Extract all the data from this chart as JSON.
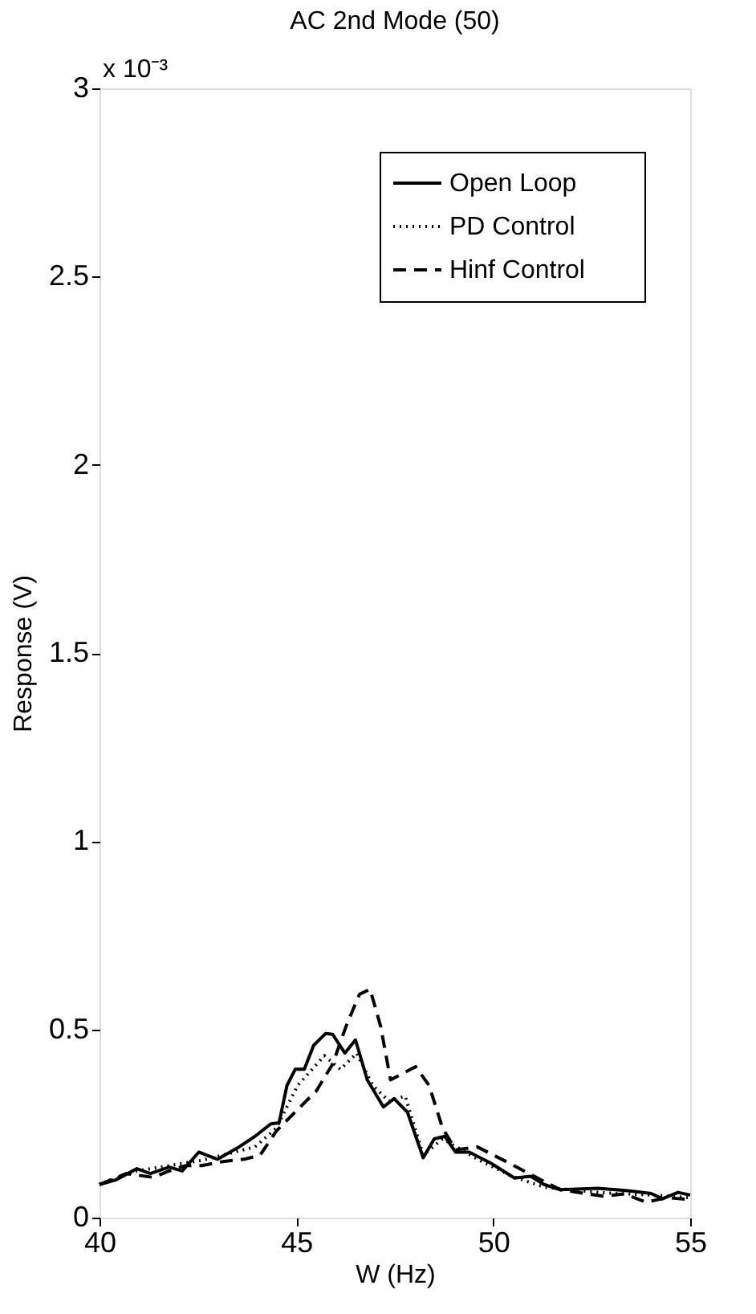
{
  "chart_data": {
    "type": "line",
    "title": "AC 2nd Mode (50)",
    "xlabel": "W (Hz)",
    "ylabel": "Response (V)",
    "annotations": [
      "x 10⁻³"
    ],
    "xlim": [
      40,
      55
    ],
    "xticks": [
      40,
      45,
      50,
      55
    ],
    "ylim": [
      0,
      3
    ],
    "yticks": [
      0,
      0.5,
      1,
      1.5,
      2,
      2.5,
      3
    ],
    "grid": false,
    "legend": "top right",
    "marker": "none",
    "series": [
      {
        "name": "Open Loop",
        "color": "#000000",
        "line_style": "solid",
        "x": [
          40,
          40.41,
          40.95,
          41.29,
          41.77,
          42.1,
          42.52,
          43.0,
          43.5,
          43.95,
          44.35,
          44.56,
          44.76,
          44.97,
          45.2,
          45.44,
          45.74,
          45.92,
          46.23,
          46.5,
          46.8,
          47.21,
          47.48,
          47.82,
          48.22,
          48.5,
          48.77,
          49.04,
          49.39,
          49.93,
          50.54,
          50.95,
          51.29,
          51.7,
          52.65,
          53.47,
          54.01,
          54.29,
          54.69,
          55
        ],
        "values": [
          0.088,
          0.1,
          0.13,
          0.117,
          0.134,
          0.124,
          0.174,
          0.155,
          0.185,
          0.216,
          0.249,
          0.252,
          0.351,
          0.394,
          0.394,
          0.458,
          0.489,
          0.487,
          0.437,
          0.472,
          0.366,
          0.294,
          0.316,
          0.28,
          0.159,
          0.209,
          0.216,
          0.174,
          0.174,
          0.145,
          0.105,
          0.11,
          0.088,
          0.074,
          0.078,
          0.071,
          0.064,
          0.05,
          0.067,
          0.06
        ]
      },
      {
        "name": "PD Control",
        "color": "#000000",
        "line_style": "dotted",
        "x": [
          40,
          40.95,
          42.59,
          43.95,
          44.49,
          45.03,
          45.71,
          46.12,
          46.53,
          46.94,
          47.35,
          47.76,
          48.22,
          48.71,
          49.66,
          50.47,
          51.29,
          52.65,
          54.01,
          55
        ],
        "values": [
          0.088,
          0.124,
          0.152,
          0.188,
          0.238,
          0.351,
          0.43,
          0.394,
          0.437,
          0.351,
          0.309,
          0.323,
          0.166,
          0.209,
          0.152,
          0.11,
          0.081,
          0.067,
          0.06,
          0.053
        ]
      },
      {
        "name": "Hinf Control",
        "color": "#000000",
        "line_style": "dashed",
        "x": [
          40,
          40.68,
          41.36,
          41.77,
          42.18,
          42.59,
          43.13,
          43.67,
          44.08,
          44.49,
          45.03,
          45.51,
          45.92,
          46.26,
          46.6,
          46.87,
          47.14,
          47.39,
          48.03,
          48.37,
          48.71,
          49.04,
          49.59,
          50.4,
          51.0,
          51.7,
          52.79,
          53.33,
          53.88,
          54.42,
          55
        ],
        "values": [
          0.088,
          0.117,
          0.107,
          0.124,
          0.138,
          0.138,
          0.149,
          0.155,
          0.166,
          0.23,
          0.287,
          0.337,
          0.408,
          0.508,
          0.593,
          0.607,
          0.508,
          0.366,
          0.401,
          0.351,
          0.238,
          0.18,
          0.188,
          0.145,
          0.112,
          0.074,
          0.057,
          0.063,
          0.041,
          0.053,
          0.048
        ]
      }
    ]
  }
}
